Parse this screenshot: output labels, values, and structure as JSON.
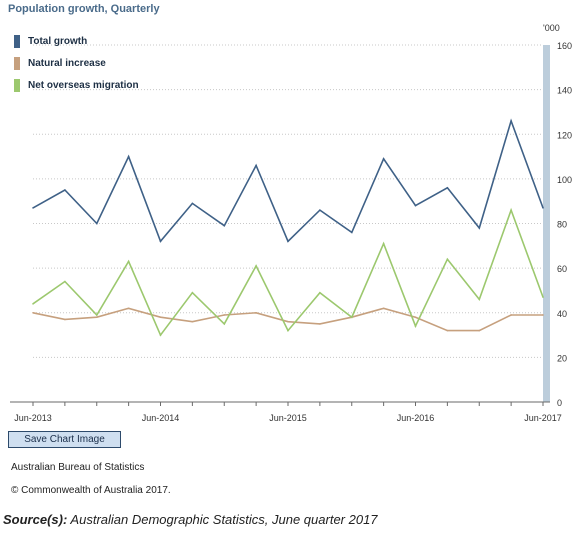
{
  "chart_data": {
    "type": "line",
    "title": "Population growth, Quarterly",
    "unit_label": "'000",
    "x_ticks": [
      "Jun-2013",
      "Jun-2014",
      "Jun-2015",
      "Jun-2016",
      "Jun-2017"
    ],
    "ylim": [
      0,
      160
    ],
    "y_ticks": [
      0,
      20,
      40,
      60,
      80,
      100,
      120,
      140,
      160
    ],
    "grid": true,
    "legend_position": "top-left",
    "series": [
      {
        "name": "Total growth",
        "color": "#3f6187",
        "values": [
          87,
          95,
          80,
          110,
          72,
          89,
          79,
          106,
          72,
          86,
          76,
          109,
          88,
          96,
          78,
          126,
          87
        ]
      },
      {
        "name": "Natural increase",
        "color": "#c6a07e",
        "values": [
          40,
          37,
          38,
          42,
          38,
          36,
          39,
          40,
          36,
          35,
          38,
          42,
          38,
          32,
          32,
          39,
          39
        ]
      },
      {
        "name": "Net overseas migration",
        "color": "#9cc86e",
        "values": [
          44,
          54,
          39,
          63,
          30,
          49,
          35,
          61,
          32,
          49,
          38,
          71,
          34,
          64,
          46,
          86,
          47
        ]
      }
    ]
  },
  "buttons": {
    "save_chart": "Save Chart Image"
  },
  "footer": {
    "source_org": "Australian Bureau of Statistics",
    "copyright": "© Commonwealth of Australia 2017.",
    "source_label": "Source(s):",
    "source_text": " Australian Demographic Statistics, June quarter 2017"
  }
}
